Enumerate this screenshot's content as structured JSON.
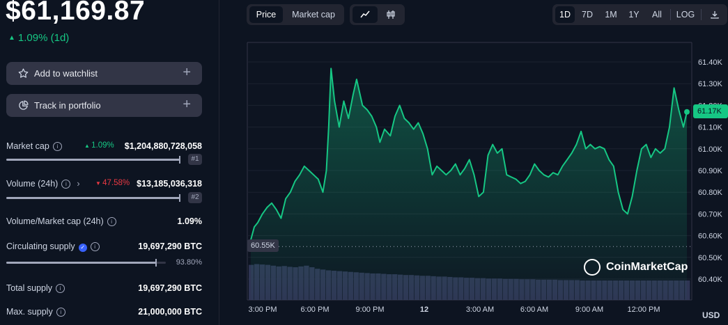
{
  "price": "$61,169.87",
  "change": {
    "value": "1.09% (1d)",
    "color": "#16c784"
  },
  "actions": {
    "watchlist": "Add to watchlist",
    "portfolio": "Track in portfolio"
  },
  "stats": {
    "market_cap": {
      "label": "Market cap",
      "pct": "1.09%",
      "value": "$1,204,880,728,058",
      "rank": "#1"
    },
    "volume": {
      "label": "Volume (24h)",
      "pct": "47.58%",
      "value": "$13,185,036,318",
      "rank": "#2"
    },
    "vol_mcap": {
      "label": "Volume/Market cap (24h)",
      "value": "1.09%"
    },
    "circulating": {
      "label": "Circulating supply",
      "value": "19,697,290 BTC",
      "pct": "93.80%",
      "progress": 0.938
    },
    "total": {
      "label": "Total supply",
      "value": "19,697,290 BTC"
    },
    "max": {
      "label": "Max. supply",
      "value": "21,000,000 BTC"
    }
  },
  "toolbar": {
    "mode_tabs": [
      "Price",
      "Market cap"
    ],
    "ranges": [
      "1D",
      "7D",
      "1M",
      "1Y",
      "All"
    ],
    "log": "LOG",
    "active_mode": "Price",
    "active_range": "1D"
  },
  "chart_data": {
    "type": "area",
    "yticks": [
      "61.40K",
      "61.30K",
      "61.20K",
      "61.10K",
      "61.00K",
      "60.90K",
      "60.80K",
      "60.70K",
      "60.60K",
      "60.50K",
      "60.40K"
    ],
    "xticks": [
      "3:00 PM",
      "6:00 PM",
      "9:00 PM",
      "12",
      "3:00 AM",
      "6:00 AM",
      "9:00 AM",
      "12:00 PM"
    ],
    "ylim": [
      60.4,
      61.4
    ],
    "current_label": "61.17K",
    "low_label": "60.55K",
    "currency": "USD",
    "watermark": "CoinMarketCap",
    "color": "#16c784",
    "series": [
      {
        "values": [
          [
            0,
            60.58
          ],
          [
            0.15,
            60.64
          ],
          [
            0.3,
            60.66
          ],
          [
            0.5,
            60.7
          ],
          [
            0.7,
            60.73
          ],
          [
            0.9,
            60.75
          ],
          [
            1.1,
            60.72
          ],
          [
            1.3,
            60.68
          ],
          [
            1.5,
            60.77
          ],
          [
            1.7,
            60.8
          ],
          [
            1.9,
            60.85
          ],
          [
            2.1,
            60.88
          ],
          [
            2.3,
            60.92
          ],
          [
            2.5,
            60.9
          ],
          [
            2.7,
            60.88
          ],
          [
            2.9,
            60.86
          ],
          [
            3.1,
            60.8
          ],
          [
            3.25,
            60.9
          ],
          [
            3.35,
            61.1
          ],
          [
            3.45,
            61.37
          ],
          [
            3.6,
            61.22
          ],
          [
            3.8,
            61.1
          ],
          [
            4.0,
            61.22
          ],
          [
            4.2,
            61.14
          ],
          [
            4.4,
            61.25
          ],
          [
            4.55,
            61.32
          ],
          [
            4.8,
            61.2
          ],
          [
            5.0,
            61.18
          ],
          [
            5.2,
            61.15
          ],
          [
            5.4,
            61.1
          ],
          [
            5.55,
            61.03
          ],
          [
            5.75,
            61.09
          ],
          [
            6.0,
            61.06
          ],
          [
            6.2,
            61.15
          ],
          [
            6.4,
            61.2
          ],
          [
            6.6,
            61.14
          ],
          [
            6.8,
            61.12
          ],
          [
            7.0,
            61.09
          ],
          [
            7.2,
            61.12
          ],
          [
            7.4,
            61.07
          ],
          [
            7.6,
            61.0
          ],
          [
            7.8,
            60.88
          ],
          [
            8.0,
            60.92
          ],
          [
            8.2,
            60.9
          ],
          [
            8.4,
            60.88
          ],
          [
            8.6,
            60.9
          ],
          [
            8.8,
            60.93
          ],
          [
            9.0,
            60.88
          ],
          [
            9.2,
            60.91
          ],
          [
            9.4,
            60.95
          ],
          [
            9.6,
            60.88
          ],
          [
            9.8,
            60.78
          ],
          [
            10.0,
            60.8
          ],
          [
            10.2,
            60.97
          ],
          [
            10.4,
            61.02
          ],
          [
            10.6,
            60.98
          ],
          [
            10.8,
            61.0
          ],
          [
            11.0,
            60.88
          ],
          [
            11.2,
            60.87
          ],
          [
            11.4,
            60.86
          ],
          [
            11.6,
            60.84
          ],
          [
            11.8,
            60.85
          ],
          [
            12.0,
            60.88
          ],
          [
            12.2,
            60.93
          ],
          [
            12.4,
            60.9
          ],
          [
            12.6,
            60.88
          ],
          [
            12.8,
            60.87
          ],
          [
            13.0,
            60.89
          ],
          [
            13.2,
            60.88
          ],
          [
            13.4,
            60.92
          ],
          [
            13.6,
            60.95
          ],
          [
            13.8,
            60.98
          ],
          [
            14.0,
            61.02
          ],
          [
            14.2,
            61.08
          ],
          [
            14.4,
            61.0
          ],
          [
            14.6,
            61.02
          ],
          [
            14.8,
            61.0
          ],
          [
            15.0,
            61.01
          ],
          [
            15.2,
            61.0
          ],
          [
            15.4,
            60.95
          ],
          [
            15.6,
            60.92
          ],
          [
            15.8,
            60.8
          ],
          [
            16.0,
            60.72
          ],
          [
            16.2,
            60.7
          ],
          [
            16.4,
            60.78
          ],
          [
            16.6,
            60.9
          ],
          [
            16.8,
            61.0
          ],
          [
            17.0,
            61.02
          ],
          [
            17.2,
            60.96
          ],
          [
            17.4,
            61.0
          ],
          [
            17.6,
            60.98
          ],
          [
            17.8,
            61.0
          ],
          [
            18.0,
            61.1
          ],
          [
            18.2,
            61.28
          ],
          [
            18.4,
            61.18
          ],
          [
            18.6,
            61.1
          ],
          [
            18.75,
            61.17
          ]
        ]
      }
    ],
    "volume": [
      0.9,
      0.92,
      0.91,
      0.9,
      0.88,
      0.86,
      0.87,
      0.85,
      0.84,
      0.86,
      0.88,
      0.84,
      0.8,
      0.78,
      0.76,
      0.75,
      0.74,
      0.73,
      0.72,
      0.71,
      0.7,
      0.69,
      0.68,
      0.68,
      0.67,
      0.66,
      0.66,
      0.65,
      0.64,
      0.64,
      0.63,
      0.62,
      0.62,
      0.61,
      0.6,
      0.6,
      0.59,
      0.58,
      0.58,
      0.57,
      0.57,
      0.56,
      0.56,
      0.55,
      0.55,
      0.55,
      0.54,
      0.54,
      0.54,
      0.53,
      0.53,
      0.53,
      0.52,
      0.52,
      0.52,
      0.52,
      0.51,
      0.51,
      0.51,
      0.51,
      0.5,
      0.5,
      0.5,
      0.5,
      0.5,
      0.5,
      0.5,
      0.5,
      0.5,
      0.5,
      0.5,
      0.5,
      0.5,
      0.5,
      0.5,
      0.5,
      0.5,
      0.5,
      0.5,
      0.5
    ]
  }
}
